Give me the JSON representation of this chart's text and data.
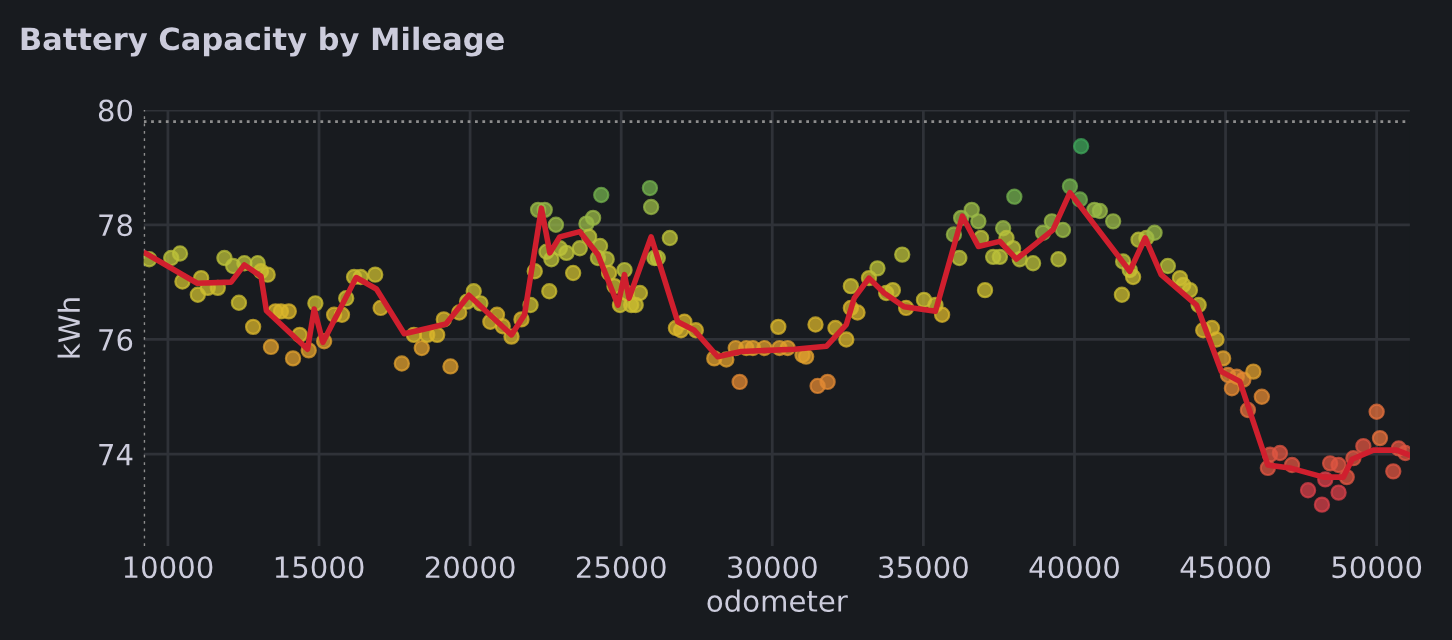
{
  "chart_data": {
    "type": "scatter",
    "title": "Battery Capacity by Mileage",
    "xlabel": "odometer",
    "ylabel": "kWh",
    "xlim": [
      9200,
      51100
    ],
    "ylim": [
      72.4,
      80
    ],
    "xticks": [
      10000,
      15000,
      20000,
      25000,
      30000,
      35000,
      40000,
      45000,
      50000
    ],
    "yticks": [
      74,
      76,
      78,
      80
    ],
    "grid": true,
    "marker": "circle",
    "ref_lines": [
      {
        "axis": "y",
        "value": 79.8,
        "line_style": "dotted",
        "color": "#8e8e8e"
      },
      {
        "axis": "x",
        "value": 9200,
        "line_style": "dotted",
        "color": "#8e8e8e"
      }
    ],
    "series": [
      {
        "colors": [
          "#bcc23a",
          "#bcc23a",
          "#bcc23a",
          "#cdbf30",
          "#cdbf30",
          "#cdbf30",
          "#cdbf30",
          "#cdbf30",
          "#bcc23a",
          "#bcc23a",
          "#cdbf30",
          "#bcc23a",
          "#d9b52b",
          "#bcc23a",
          "#cdbf30",
          "#cdbf30",
          "#e0a02e",
          "#d9b52b",
          "#d9b52b",
          "#d9b52b",
          "#e0a02e",
          "#d9b52b",
          "#e0a02e",
          "#cdbf30",
          "#e0a02e",
          "#d9b52b",
          "#d9b52b",
          "#cdbf30",
          "#cdbf30",
          "#cdbf30",
          "#cdbf30",
          "#d9b52b",
          "#e0a02e",
          "#d9b52b",
          "#e0a02e",
          "#d9b52b",
          "#d9b52b",
          "#d9b52b",
          "#e0a02e",
          "#d9b52b",
          "#cdbf30",
          "#cdbf30",
          "#cdbf30",
          "#d9b52b",
          "#d9b52b",
          "#d9b52b",
          "#d9b52b",
          "#d9b52b",
          "#cdbf30",
          "#cdbf30",
          "#9ab947",
          "#9ab947",
          "#bcc23a",
          "#cdbf30",
          "#bcc23a",
          "#9ab947",
          "#bcc23a",
          "#bcc23a",
          "#cdbf30",
          "#bcc23a",
          "#9ab947",
          "#bcc23a",
          "#9ab947",
          "#73b04e",
          "#bcc23a",
          "#bcc23a",
          "#bcc23a",
          "#cdbf30",
          "#cdbf30",
          "#cdbf30",
          "#bcc23a",
          "#cdbf30",
          "#cdbf30",
          "#cdbf30",
          "#cdbf30",
          "#73b04e",
          "#9ab947",
          "#bcc23a",
          "#bcc23a",
          "#bcc23a",
          "#d9b52b",
          "#d9b52b",
          "#d9b52b",
          "#d9b52b",
          "#e0a02e",
          "#e0a02e",
          "#e0a02e",
          "#e38a33",
          "#e0a02e",
          "#e0a02e",
          "#e0a02e",
          "#e0a02e",
          "#e0a02e",
          "#d9b52b",
          "#e0a02e",
          "#e0a02e",
          "#d9b52b",
          "#e38a33",
          "#e38a33",
          "#d9b52b",
          "#d9b52b",
          "#cdbf30",
          "#d9b52b",
          "#d9b52b",
          "#cdbf30",
          "#bcc23a",
          "#cdbf30",
          "#cdbf30",
          "#bcc23a",
          "#d9b52b",
          "#cdbf30",
          "#cdbf30",
          "#d9b52b",
          "#9ab947",
          "#bcc23a",
          "#9ab947",
          "#9ab947",
          "#9ab947",
          "#bcc23a",
          "#cdbf30",
          "#bcc23a",
          "#bcc23a",
          "#9ab947",
          "#bcc23a",
          "#bcc23a",
          "#73b04e",
          "#bcc23a",
          "#bcc23a",
          "#9ab947",
          "#9ab947",
          "#bcc23a",
          "#9ab947",
          "#73b04e",
          "#3fa65a",
          "#73b04e",
          "#9ab947",
          "#9ab947",
          "#9ab947",
          "#bcc23a",
          "#cdbf30",
          "#bcc23a",
          "#cdbf30",
          "#bcc23a",
          "#bcc23a",
          "#9ab947",
          "#bcc23a",
          "#cdbf30",
          "#cdbf30",
          "#cdbf30",
          "#cdbf30",
          "#d9b52b",
          "#d9b52b",
          "#d9b52b",
          "#e0a02e",
          "#e38a33",
          "#e38a33",
          "#e38a33",
          "#e38a33",
          "#e0a02e",
          "#e38a33",
          "#e4703c",
          "#df5641",
          "#df5641",
          "#df5641",
          "#df5641",
          "#d8404a",
          "#d8404a",
          "#d8404a",
          "#df5641",
          "#df5641",
          "#d8404a",
          "#df5641",
          "#df5641",
          "#df5641",
          "#e4703c",
          "#e4703c",
          "#df5641",
          "#df5641",
          "#df5641"
        ],
        "x": [
          9380,
          10110,
          10400,
          10480,
          10990,
          11100,
          11320,
          11650,
          11870,
          12160,
          12350,
          12530,
          12820,
          12970,
          13080,
          13300,
          13410,
          13560,
          13740,
          14000,
          14140,
          14360,
          14660,
          14880,
          15170,
          15500,
          15760,
          15900,
          16160,
          16380,
          16860,
          17040,
          17740,
          18140,
          18400,
          18580,
          18910,
          19130,
          19350,
          19640,
          19900,
          20120,
          20340,
          20670,
          20890,
          21080,
          21370,
          21700,
          22000,
          22140,
          22250,
          22470,
          22530,
          22620,
          22690,
          22840,
          22970,
          23190,
          23410,
          23630,
          23850,
          23940,
          24070,
          24340,
          24300,
          24230,
          24520,
          24600,
          24780,
          24960,
          25110,
          25180,
          25330,
          25480,
          25620,
          25950,
          25990,
          26100,
          26210,
          26610,
          26810,
          26980,
          27090,
          27470,
          28080,
          28480,
          28790,
          28920,
          29140,
          29360,
          29740,
          30240,
          30510,
          30200,
          31000,
          31120,
          31430,
          31500,
          31830,
          32090,
          32450,
          32600,
          32600,
          32820,
          33200,
          33480,
          33770,
          33990,
          34300,
          34430,
          35020,
          35400,
          35620,
          36010,
          36190,
          36250,
          36600,
          36820,
          36910,
          37040,
          37310,
          37530,
          37640,
          37750,
          37970,
          38010,
          38190,
          38630,
          38960,
          39250,
          39470,
          39620,
          39850,
          40220,
          40180,
          40660,
          40840,
          41280,
          41610,
          41570,
          41830,
          41940,
          42120,
          42380,
          42650,
          43090,
          43490,
          43600,
          43820,
          44110,
          44260,
          44550,
          44700,
          44920,
          45080,
          45210,
          45370,
          45590,
          45920,
          46200,
          45740,
          46470,
          46400,
          46800,
          47200,
          47730,
          48190,
          48300,
          48460,
          48740,
          48740,
          49010,
          49230,
          49560,
          50000,
          50110,
          50550,
          50730,
          50950
        ],
        "values": [
          77.4,
          77.42,
          77.5,
          77.01,
          76.78,
          77.07,
          76.9,
          76.9,
          77.42,
          77.28,
          76.64,
          77.33,
          76.22,
          77.33,
          77.19,
          77.13,
          75.87,
          76.49,
          76.49,
          76.49,
          75.67,
          76.08,
          75.81,
          76.63,
          75.97,
          76.43,
          76.43,
          76.72,
          77.09,
          77.09,
          77.13,
          76.55,
          75.58,
          76.08,
          75.85,
          76.08,
          76.08,
          76.35,
          75.53,
          76.47,
          76.66,
          76.84,
          76.63,
          76.31,
          76.43,
          76.23,
          76.05,
          76.35,
          76.6,
          77.19,
          78.26,
          78.26,
          77.53,
          76.84,
          77.4,
          78.0,
          77.59,
          77.51,
          77.16,
          77.59,
          78.02,
          77.79,
          78.12,
          78.52,
          77.63,
          77.42,
          77.4,
          77.16,
          76.93,
          76.6,
          77.21,
          76.81,
          76.6,
          76.6,
          76.81,
          78.64,
          78.31,
          77.42,
          77.42,
          77.77,
          76.2,
          76.16,
          76.31,
          76.16,
          75.67,
          75.65,
          75.85,
          75.26,
          75.85,
          75.85,
          75.85,
          75.85,
          75.85,
          76.22,
          75.73,
          75.7,
          76.26,
          75.19,
          75.26,
          76.2,
          76.0,
          76.93,
          76.55,
          76.47,
          77.07,
          77.24,
          76.81,
          76.86,
          77.48,
          76.55,
          76.69,
          76.6,
          76.43,
          77.83,
          77.42,
          78.12,
          78.26,
          78.06,
          77.77,
          76.86,
          77.44,
          77.44,
          77.94,
          77.77,
          77.59,
          78.49,
          77.4,
          77.33,
          77.86,
          78.06,
          77.4,
          77.91,
          78.67,
          79.37,
          78.44,
          78.26,
          78.24,
          78.06,
          77.36,
          76.78,
          77.21,
          77.09,
          77.74,
          77.77,
          77.86,
          77.28,
          77.07,
          76.95,
          76.86,
          76.6,
          76.16,
          76.2,
          76.0,
          75.67,
          75.38,
          75.15,
          75.35,
          75.3,
          75.44,
          75.0,
          74.77,
          73.99,
          73.76,
          74.02,
          73.81,
          73.37,
          73.12,
          73.56,
          73.84,
          73.81,
          73.33,
          73.6,
          73.93,
          74.14,
          74.74,
          74.28,
          73.7,
          74.1,
          74.02
        ]
      },
      {
        "type": "line",
        "color": "#d01f2e",
        "marker": "none",
        "line_style": "solid",
        "x": [
          9270,
          10970,
          12090,
          12530,
          13080,
          13260,
          14620,
          14840,
          15130,
          16230,
          16900,
          17820,
          19200,
          19960,
          21370,
          21800,
          22360,
          22640,
          22970,
          23630,
          24230,
          24890,
          25110,
          25260,
          25990,
          26870,
          27420,
          28190,
          28970,
          30730,
          31790,
          32450,
          32710,
          33200,
          33700,
          34360,
          35400,
          36290,
          36820,
          37530,
          38080,
          39290,
          39850,
          41830,
          42340,
          42870,
          44040,
          44860,
          45470,
          46400,
          47130,
          48240,
          48900,
          49190,
          49890,
          50660,
          51100
        ],
        "values": [
          77.5,
          76.98,
          77.0,
          77.3,
          77.1,
          76.5,
          75.83,
          76.53,
          75.95,
          77.08,
          76.88,
          76.1,
          76.27,
          76.77,
          76.08,
          76.43,
          78.29,
          77.51,
          77.79,
          77.88,
          77.48,
          76.6,
          77.13,
          76.72,
          77.79,
          76.31,
          76.16,
          75.7,
          75.79,
          75.83,
          75.88,
          76.26,
          76.72,
          77.07,
          76.81,
          76.57,
          76.49,
          78.15,
          77.62,
          77.71,
          77.4,
          77.91,
          78.56,
          77.19,
          77.77,
          77.13,
          76.6,
          75.44,
          75.27,
          73.81,
          73.76,
          73.6,
          73.6,
          73.91,
          74.07,
          74.07,
          73.98
        ]
      }
    ]
  }
}
